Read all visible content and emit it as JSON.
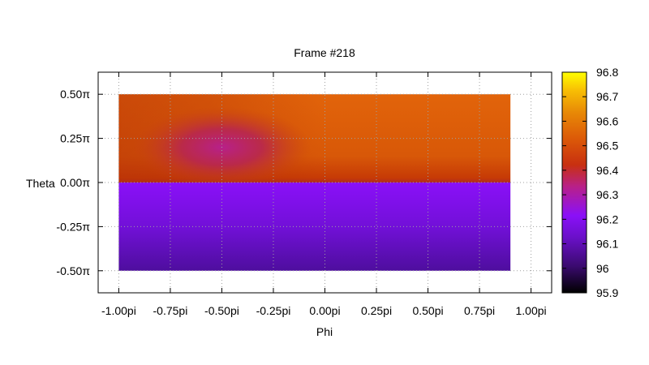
{
  "chart_data": {
    "type": "heatmap",
    "title": "Frame #218",
    "xlabel": "Phi",
    "ylabel": "Theta",
    "xlim": [
      -1.1,
      1.1
    ],
    "ylim": [
      -0.625,
      0.625
    ],
    "x_tick_values": [
      -1.0,
      -0.75,
      -0.5,
      -0.25,
      0.0,
      0.25,
      0.5,
      0.75,
      1.0
    ],
    "x_tick_labels": [
      "-1.00pi",
      "-0.75pi",
      "-0.50pi",
      "-0.25pi",
      "0.00pi",
      "0.25pi",
      "0.50pi",
      "0.75pi",
      "1.00pi"
    ],
    "y_tick_values": [
      0.5,
      0.25,
      0.0,
      -0.25,
      -0.5
    ],
    "y_tick_labels": [
      "0.50π",
      "0.25π",
      "0.00π",
      "-0.25π",
      "-0.50π"
    ],
    "grid": true,
    "data_extent": {
      "x": [
        -1.0,
        0.9
      ],
      "y": [
        -0.5,
        0.5
      ]
    },
    "colorbar": {
      "range": [
        95.9,
        96.8
      ],
      "tick_values": [
        96.8,
        96.7,
        96.6,
        96.5,
        96.4,
        96.3,
        96.2,
        96.1,
        96.0,
        95.9
      ],
      "tick_labels": [
        "96.8",
        "96.7",
        "96.6",
        "96.5",
        "96.4",
        "96.3",
        "96.2",
        "96.1",
        "96",
        "95.9"
      ],
      "palette": "gnuplot (black-purple-red-orange-yellow)"
    },
    "regions": [
      {
        "area": "upper half (theta 0 to 0.5π)",
        "value_approx": 96.52,
        "color": "#e0600a"
      },
      {
        "area": "darker band around phi -0.5π, theta 0.2π",
        "value_approx": 96.3,
        "color": "#c0206a"
      },
      {
        "area": "lower half (theta -0.5π to 0)",
        "value_approx": 96.1,
        "color": "#7a10e8"
      },
      {
        "area": "bottom edge (theta -0.5π)",
        "value_approx": 96.02,
        "color": "#5010a8"
      }
    ]
  }
}
